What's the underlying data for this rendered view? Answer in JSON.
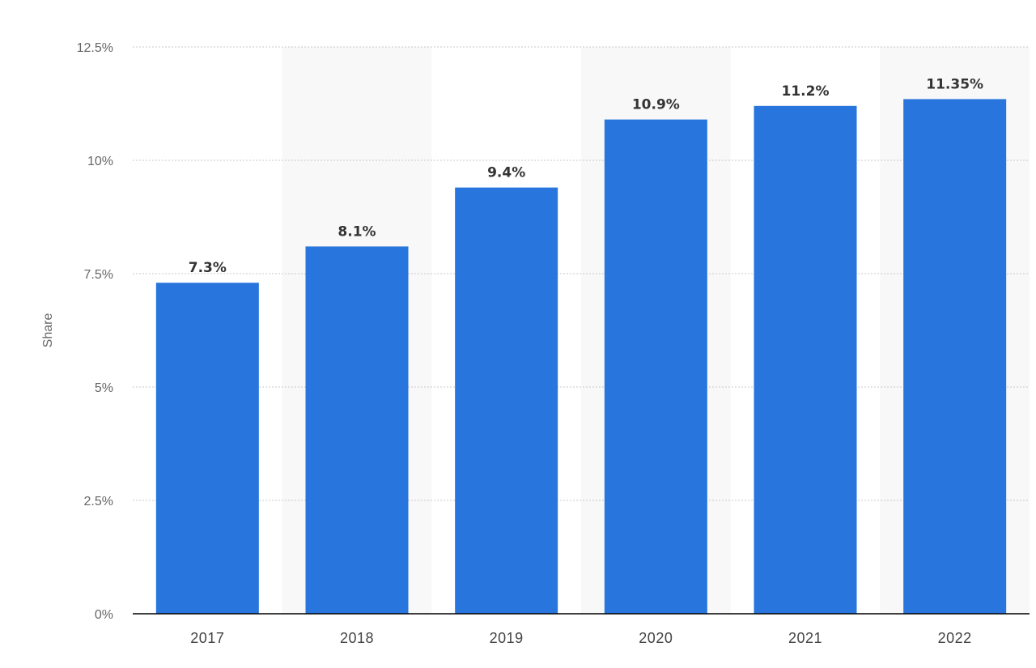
{
  "chart_data": {
    "type": "bar",
    "title": "",
    "xlabel": "",
    "ylabel": "Share",
    "categories": [
      "2017",
      "2018",
      "2019",
      "2020",
      "2021",
      "2022"
    ],
    "values": [
      7.3,
      8.1,
      9.4,
      10.9,
      11.2,
      11.35
    ],
    "data_labels": [
      "7.3%",
      "8.1%",
      "9.4%",
      "10.9%",
      "11.2%",
      "11.35%"
    ],
    "ylim": [
      0,
      12.5
    ],
    "yticks": [
      0,
      2.5,
      5,
      7.5,
      10,
      12.5
    ],
    "ytick_labels": [
      "0%",
      "2.5%",
      "5%",
      "7.5%",
      "10%",
      "12.5%"
    ],
    "grid": true,
    "legend": "none",
    "colors": {
      "bar": "#2876dd",
      "band": "#f8f8f8",
      "grid": "#c8c8c8",
      "baseline": "#000000"
    }
  }
}
